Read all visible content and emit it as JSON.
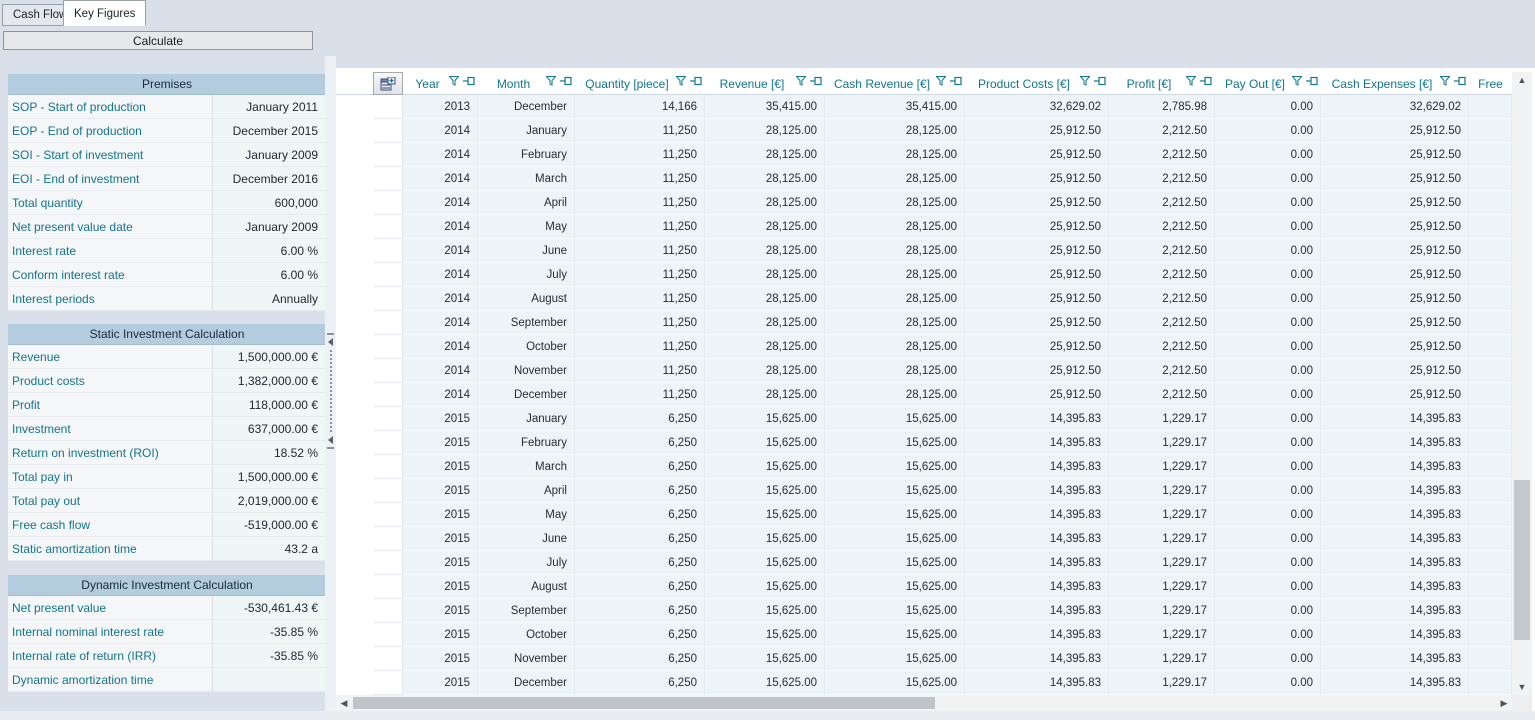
{
  "tabs": [
    {
      "label": "Cash Flow",
      "active": false
    },
    {
      "label": "Key Figures",
      "active": true
    }
  ],
  "toolbar": {
    "calculate_label": "Calculate"
  },
  "sidebar": {
    "sections": [
      {
        "title": "Premises",
        "rows": [
          {
            "label": "SOP - Start of production",
            "value": "January 2011"
          },
          {
            "label": "EOP - End of production",
            "value": "December 2015"
          },
          {
            "label": "SOI - Start of investment",
            "value": "January 2009"
          },
          {
            "label": "EOI - End of investment",
            "value": "December 2016"
          },
          {
            "label": "Total quantity",
            "value": "600,000"
          },
          {
            "label": "Net present value date",
            "value": "January 2009"
          },
          {
            "label": "Interest rate",
            "value": "6.00 %"
          },
          {
            "label": "Conform interest rate",
            "value": "6.00 %"
          },
          {
            "label": "Interest periods",
            "value": "Annually"
          }
        ]
      },
      {
        "title": "Static Investment Calculation",
        "rows": [
          {
            "label": "Revenue",
            "value": "1,500,000.00 €"
          },
          {
            "label": "Product costs",
            "value": "1,382,000.00 €"
          },
          {
            "label": "Profit",
            "value": "118,000.00 €"
          },
          {
            "label": "Investment",
            "value": "637,000.00 €"
          },
          {
            "label": "Return on investment (ROI)",
            "value": "18.52 %"
          },
          {
            "label": "Total pay in",
            "value": "1,500,000.00 €"
          },
          {
            "label": "Total pay out",
            "value": "2,019,000.00 €"
          },
          {
            "label": "Free cash flow",
            "value": "-519,000.00 €"
          },
          {
            "label": "Static amortization time",
            "value": "43.2 a"
          }
        ]
      },
      {
        "title": "Dynamic Investment Calculation",
        "rows": [
          {
            "label": "Net present value",
            "value": "-530,461.43 €"
          },
          {
            "label": "Internal nominal interest rate",
            "value": "-35.85 %"
          },
          {
            "label": "Internal rate of return (IRR)",
            "value": "-35.85 %"
          },
          {
            "label": "Dynamic amortization time",
            "value": ""
          }
        ]
      }
    ]
  },
  "grid": {
    "columns": [
      {
        "label": "Year",
        "icons": true
      },
      {
        "label": "Month",
        "icons": true
      },
      {
        "label": "Quantity [piece]",
        "icons": true
      },
      {
        "label": "Revenue [€]",
        "icons": true
      },
      {
        "label": "Cash Revenue [€]",
        "icons": true
      },
      {
        "label": "Product Costs [€]",
        "icons": true
      },
      {
        "label": "Profit [€]",
        "icons": true
      },
      {
        "label": "Pay Out [€]",
        "icons": true
      },
      {
        "label": "Cash Expenses [€]",
        "icons": true
      },
      {
        "label": "Free",
        "icons": false
      }
    ],
    "rows": [
      [
        "2013",
        "December",
        "14,166",
        "35,415.00",
        "35,415.00",
        "32,629.02",
        "2,785.98",
        "0.00",
        "32,629.02",
        ""
      ],
      [
        "2014",
        "January",
        "11,250",
        "28,125.00",
        "28,125.00",
        "25,912.50",
        "2,212.50",
        "0.00",
        "25,912.50",
        ""
      ],
      [
        "2014",
        "February",
        "11,250",
        "28,125.00",
        "28,125.00",
        "25,912.50",
        "2,212.50",
        "0.00",
        "25,912.50",
        ""
      ],
      [
        "2014",
        "March",
        "11,250",
        "28,125.00",
        "28,125.00",
        "25,912.50",
        "2,212.50",
        "0.00",
        "25,912.50",
        ""
      ],
      [
        "2014",
        "April",
        "11,250",
        "28,125.00",
        "28,125.00",
        "25,912.50",
        "2,212.50",
        "0.00",
        "25,912.50",
        ""
      ],
      [
        "2014",
        "May",
        "11,250",
        "28,125.00",
        "28,125.00",
        "25,912.50",
        "2,212.50",
        "0.00",
        "25,912.50",
        ""
      ],
      [
        "2014",
        "June",
        "11,250",
        "28,125.00",
        "28,125.00",
        "25,912.50",
        "2,212.50",
        "0.00",
        "25,912.50",
        ""
      ],
      [
        "2014",
        "July",
        "11,250",
        "28,125.00",
        "28,125.00",
        "25,912.50",
        "2,212.50",
        "0.00",
        "25,912.50",
        ""
      ],
      [
        "2014",
        "August",
        "11,250",
        "28,125.00",
        "28,125.00",
        "25,912.50",
        "2,212.50",
        "0.00",
        "25,912.50",
        ""
      ],
      [
        "2014",
        "September",
        "11,250",
        "28,125.00",
        "28,125.00",
        "25,912.50",
        "2,212.50",
        "0.00",
        "25,912.50",
        ""
      ],
      [
        "2014",
        "October",
        "11,250",
        "28,125.00",
        "28,125.00",
        "25,912.50",
        "2,212.50",
        "0.00",
        "25,912.50",
        ""
      ],
      [
        "2014",
        "November",
        "11,250",
        "28,125.00",
        "28,125.00",
        "25,912.50",
        "2,212.50",
        "0.00",
        "25,912.50",
        ""
      ],
      [
        "2014",
        "December",
        "11,250",
        "28,125.00",
        "28,125.00",
        "25,912.50",
        "2,212.50",
        "0.00",
        "25,912.50",
        ""
      ],
      [
        "2015",
        "January",
        "6,250",
        "15,625.00",
        "15,625.00",
        "14,395.83",
        "1,229.17",
        "0.00",
        "14,395.83",
        ""
      ],
      [
        "2015",
        "February",
        "6,250",
        "15,625.00",
        "15,625.00",
        "14,395.83",
        "1,229.17",
        "0.00",
        "14,395.83",
        ""
      ],
      [
        "2015",
        "March",
        "6,250",
        "15,625.00",
        "15,625.00",
        "14,395.83",
        "1,229.17",
        "0.00",
        "14,395.83",
        ""
      ],
      [
        "2015",
        "April",
        "6,250",
        "15,625.00",
        "15,625.00",
        "14,395.83",
        "1,229.17",
        "0.00",
        "14,395.83",
        ""
      ],
      [
        "2015",
        "May",
        "6,250",
        "15,625.00",
        "15,625.00",
        "14,395.83",
        "1,229.17",
        "0.00",
        "14,395.83",
        ""
      ],
      [
        "2015",
        "June",
        "6,250",
        "15,625.00",
        "15,625.00",
        "14,395.83",
        "1,229.17",
        "0.00",
        "14,395.83",
        ""
      ],
      [
        "2015",
        "July",
        "6,250",
        "15,625.00",
        "15,625.00",
        "14,395.83",
        "1,229.17",
        "0.00",
        "14,395.83",
        ""
      ],
      [
        "2015",
        "August",
        "6,250",
        "15,625.00",
        "15,625.00",
        "14,395.83",
        "1,229.17",
        "0.00",
        "14,395.83",
        ""
      ],
      [
        "2015",
        "September",
        "6,250",
        "15,625.00",
        "15,625.00",
        "14,395.83",
        "1,229.17",
        "0.00",
        "14,395.83",
        ""
      ],
      [
        "2015",
        "October",
        "6,250",
        "15,625.00",
        "15,625.00",
        "14,395.83",
        "1,229.17",
        "0.00",
        "14,395.83",
        ""
      ],
      [
        "2015",
        "November",
        "6,250",
        "15,625.00",
        "15,625.00",
        "14,395.83",
        "1,229.17",
        "0.00",
        "14,395.83",
        ""
      ],
      [
        "2015",
        "December",
        "6,250",
        "15,625.00",
        "15,625.00",
        "14,395.83",
        "1,229.17",
        "0.00",
        "14,395.83",
        ""
      ]
    ]
  },
  "icons": {
    "filter": "funnel-outline",
    "pin": "push-pin-horizontal",
    "customize": "card-layout-plus",
    "scroll_up": "chevron-up",
    "scroll_down": "chevron-down",
    "scroll_left": "chevron-left",
    "scroll_right": "chevron-right"
  },
  "colors": {
    "accent_teal": "#11758f",
    "section_header_bg": "#b4cdde",
    "row_bg": "#edf4f7",
    "value_cell_bg": "#eef6f6",
    "page_bg": "#d9e0ea",
    "scroll_thumb": "#c3c8cd"
  }
}
